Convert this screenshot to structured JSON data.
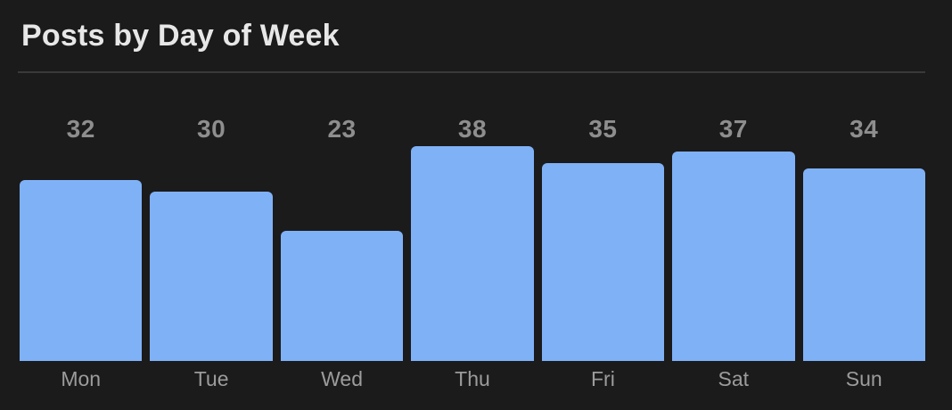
{
  "header": {
    "title": "Posts by Day of Week"
  },
  "chart_data": {
    "type": "bar",
    "title": "Posts by Day of Week",
    "categories": [
      "Mon",
      "Tue",
      "Wed",
      "Thu",
      "Fri",
      "Sat",
      "Sun"
    ],
    "values": [
      32,
      30,
      23,
      38,
      35,
      37,
      34
    ],
    "xlabel": "",
    "ylabel": "",
    "ylim": [
      0,
      40
    ],
    "grid": false,
    "legend": false,
    "value_labels_shown": true,
    "colors": {
      "background": "#1b1b1b",
      "bar": "#7FB1F7",
      "title_text": "#e7e7e7",
      "value_label_text": "#8e8e8e",
      "axis_label_text": "#9c9c9c",
      "divider": "#393939"
    }
  }
}
